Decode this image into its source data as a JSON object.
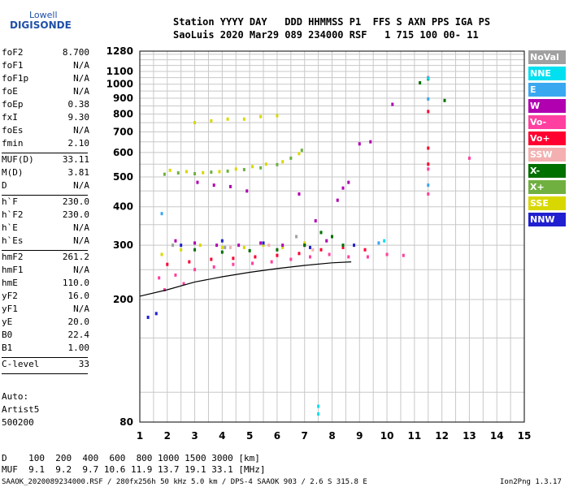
{
  "logo": {
    "line1": "Lowell",
    "line2": "DIGISONDE"
  },
  "header": {
    "row1": "Station YYYY DAY   DDD HHMMSS P1  FFS S AXN PPS IGA PS",
    "row2": "SaoLuis 2020 Mar29 089 234000 RSF   1 715 100 00- 11"
  },
  "params_group1": [
    {
      "k": "foF2",
      "v": "8.700"
    },
    {
      "k": "foF1",
      "v": "N/A"
    },
    {
      "k": "foF1p",
      "v": "N/A"
    },
    {
      "k": "foE",
      "v": "N/A"
    },
    {
      "k": "foEp",
      "v": "0.38"
    },
    {
      "k": "fxI",
      "v": "9.30"
    },
    {
      "k": "foEs",
      "v": "N/A"
    },
    {
      "k": "fmin",
      "v": "2.10"
    }
  ],
  "params_group2": [
    {
      "k": "MUF(D)",
      "v": "33.11"
    },
    {
      "k": "M(D)",
      "v": "3.81"
    },
    {
      "k": "D",
      "v": "N/A"
    }
  ],
  "params_group3": [
    {
      "k": "h`F",
      "v": "230.0"
    },
    {
      "k": "h`F2",
      "v": "230.0"
    },
    {
      "k": "h`E",
      "v": "N/A"
    },
    {
      "k": "h`Es",
      "v": "N/A"
    }
  ],
  "params_group4": [
    {
      "k": "hmF2",
      "v": "261.2"
    },
    {
      "k": "hmF1",
      "v": "N/A"
    },
    {
      "k": "hmE",
      "v": "110.0"
    },
    {
      "k": "yF2",
      "v": "16.0"
    },
    {
      "k": "yF1",
      "v": "N/A"
    },
    {
      "k": "yE",
      "v": "20.0"
    },
    {
      "k": "B0",
      "v": "22.4"
    },
    {
      "k": "B1",
      "v": "1.00"
    }
  ],
  "params_group5": [
    {
      "k": "C-level",
      "v": "33"
    }
  ],
  "auto": {
    "line1": "Auto:",
    "line2": "Artist5",
    "line3": "500200"
  },
  "legend": [
    {
      "label": "NoVal",
      "color": "#a0a0a0"
    },
    {
      "label": "NNE",
      "color": "#00e0f0"
    },
    {
      "label": "E",
      "color": "#3aa8f0"
    },
    {
      "label": "W",
      "color": "#b000b0"
    },
    {
      "label": "Vo-",
      "color": "#ff40a0"
    },
    {
      "label": "Vo+",
      "color": "#ff0030"
    },
    {
      "label": "SSW",
      "color": "#f4b0b0"
    },
    {
      "label": "X-",
      "color": "#007000"
    },
    {
      "label": "X+",
      "color": "#70b040"
    },
    {
      "label": "SSE",
      "color": "#d8d800"
    },
    {
      "label": "NNW",
      "color": "#2020d0"
    }
  ],
  "footer": {
    "row1": "D    100  200  400  600  800 1000 1500 3000 [km]",
    "row2": "MUF  9.1  9.2  9.7 10.6 11.9 13.7 19.1 33.1 [MHz]",
    "row3_left": "SAAOK_2020089234000.RSF / 280fx256h 50 kHz 5.0 km / DPS-4 SAAOK 903 / 2.6 S 315.8 E",
    "row3_right": "Ion2Png 1.3.17"
  },
  "chart_data": {
    "type": "scatter",
    "x_axis": {
      "range": [
        1,
        15
      ],
      "ticks": [
        1,
        2,
        3,
        4,
        5,
        6,
        7,
        8,
        9,
        10,
        11,
        12,
        13,
        14,
        15
      ]
    },
    "y_axis": {
      "range": [
        80,
        1280
      ],
      "scale": "log",
      "ticks": [
        80,
        200,
        300,
        400,
        500,
        600,
        700,
        800,
        900,
        1000,
        1100,
        1280
      ]
    },
    "grid": true,
    "series": [
      {
        "name": "X+",
        "color": "#70b040",
        "points": [
          [
            1.9,
            510
          ],
          [
            2.4,
            515
          ],
          [
            3.0,
            512
          ],
          [
            3.6,
            518
          ],
          [
            4.2,
            522
          ],
          [
            4.8,
            528
          ],
          [
            5.4,
            535
          ],
          [
            6.0,
            548
          ],
          [
            6.5,
            575
          ],
          [
            6.9,
            610
          ]
        ]
      },
      {
        "name": "SSE",
        "color": "#d8d800",
        "points": [
          [
            2.1,
            525
          ],
          [
            2.7,
            520
          ],
          [
            3.3,
            516
          ],
          [
            3.9,
            520
          ],
          [
            4.5,
            530
          ],
          [
            5.1,
            540
          ],
          [
            5.6,
            550
          ],
          [
            6.2,
            560
          ],
          [
            6.8,
            595
          ],
          [
            3.0,
            750
          ],
          [
            3.6,
            760
          ],
          [
            4.2,
            770
          ],
          [
            4.8,
            770
          ],
          [
            5.4,
            785
          ],
          [
            6.0,
            790
          ],
          [
            1.8,
            280
          ],
          [
            2.5,
            290
          ],
          [
            3.2,
            300
          ],
          [
            4.0,
            295
          ],
          [
            4.8,
            295
          ],
          [
            5.5,
            300
          ],
          [
            6.2,
            295
          ],
          [
            7.0,
            305
          ]
        ]
      },
      {
        "name": "W",
        "color": "#b000b0",
        "points": [
          [
            3.1,
            480
          ],
          [
            3.7,
            470
          ],
          [
            4.3,
            465
          ],
          [
            4.9,
            450
          ],
          [
            2.3,
            310
          ],
          [
            3.0,
            305
          ],
          [
            3.8,
            300
          ],
          [
            4.6,
            300
          ],
          [
            5.4,
            305
          ],
          [
            6.2,
            300
          ],
          [
            7.0,
            300
          ],
          [
            7.8,
            310
          ],
          [
            8.2,
            420
          ],
          [
            8.4,
            460
          ],
          [
            8.6,
            480
          ],
          [
            7.4,
            360
          ],
          [
            6.8,
            440
          ],
          [
            9.0,
            640
          ],
          [
            9.4,
            650
          ],
          [
            10.2,
            860
          ]
        ]
      },
      {
        "name": "Vo-",
        "color": "#ff40a0",
        "points": [
          [
            1.7,
            235
          ],
          [
            2.3,
            240
          ],
          [
            3.0,
            250
          ],
          [
            3.7,
            255
          ],
          [
            4.4,
            260
          ],
          [
            5.1,
            262
          ],
          [
            5.8,
            265
          ],
          [
            6.5,
            270
          ],
          [
            7.2,
            275
          ],
          [
            7.9,
            280
          ],
          [
            8.6,
            275
          ],
          [
            9.3,
            275
          ],
          [
            10.0,
            280
          ],
          [
            10.6,
            278
          ],
          [
            1.9,
            215
          ],
          [
            2.6,
            225
          ],
          [
            11.5,
            1050
          ],
          [
            11.5,
            530
          ],
          [
            11.5,
            440
          ],
          [
            13.0,
            575
          ]
        ]
      },
      {
        "name": "Vo+",
        "color": "#ff0030",
        "points": [
          [
            2.0,
            260
          ],
          [
            2.8,
            265
          ],
          [
            3.6,
            270
          ],
          [
            4.4,
            272
          ],
          [
            5.2,
            275
          ],
          [
            6.0,
            278
          ],
          [
            6.8,
            282
          ],
          [
            7.6,
            290
          ],
          [
            8.4,
            295
          ],
          [
            9.2,
            290
          ],
          [
            11.5,
            620
          ],
          [
            11.5,
            815
          ],
          [
            11.5,
            550
          ]
        ]
      },
      {
        "name": "X-",
        "color": "#007000",
        "points": [
          [
            3.0,
            290
          ],
          [
            4.0,
            285
          ],
          [
            5.0,
            288
          ],
          [
            6.0,
            290
          ],
          [
            7.0,
            300
          ],
          [
            7.6,
            330
          ],
          [
            8.0,
            320
          ],
          [
            8.4,
            300
          ],
          [
            11.2,
            1010
          ],
          [
            12.1,
            885
          ],
          [
            11.5,
            1040
          ]
        ]
      },
      {
        "name": "NNE",
        "color": "#00e0f0",
        "points": [
          [
            7.5,
            90
          ],
          [
            7.5,
            85
          ],
          [
            9.9,
            310
          ],
          [
            11.5,
            1045
          ]
        ]
      },
      {
        "name": "E",
        "color": "#3aa8f0",
        "points": [
          [
            11.5,
            895
          ],
          [
            11.5,
            470
          ],
          [
            1.8,
            380
          ],
          [
            9.7,
            305
          ]
        ]
      },
      {
        "name": "NNW",
        "color": "#2020d0",
        "points": [
          [
            2.5,
            300
          ],
          [
            4.0,
            310
          ],
          [
            5.5,
            305
          ],
          [
            7.2,
            295
          ],
          [
            8.8,
            300
          ],
          [
            1.3,
            175
          ],
          [
            1.6,
            180
          ]
        ]
      },
      {
        "name": "NoVal",
        "color": "#a0a0a0",
        "points": [
          [
            2.2,
            300
          ],
          [
            4.1,
            295
          ],
          [
            6.7,
            320
          ]
        ]
      },
      {
        "name": "SSW",
        "color": "#f4b0b0",
        "points": [
          [
            4.3,
            295
          ],
          [
            5.7,
            300
          ],
          [
            7.3,
            290
          ]
        ]
      }
    ],
    "trace": [
      [
        1,
        205
      ],
      [
        2,
        215
      ],
      [
        3,
        228
      ],
      [
        4,
        237
      ],
      [
        5,
        245
      ],
      [
        6,
        252
      ],
      [
        7,
        258
      ],
      [
        8,
        263
      ],
      [
        8.7,
        265
      ]
    ]
  }
}
